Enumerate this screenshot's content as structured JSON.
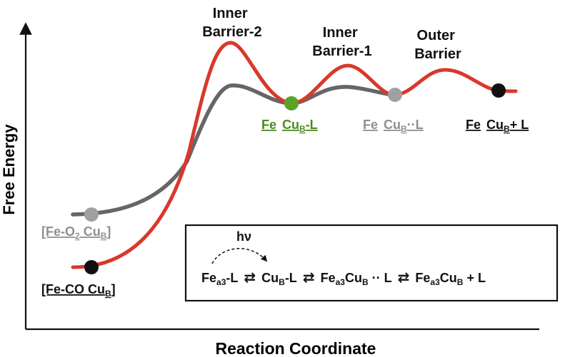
{
  "axes": {
    "y_label": "Free Energy",
    "x_label": "Reaction Coordinate"
  },
  "barriers": {
    "inner2_line1": "Inner",
    "inner2_line2": "Barrier-2",
    "inner1_line1": "Inner",
    "inner1_line2": "Barrier-1",
    "outer_line1": "Outer",
    "outer_line2": "Barrier"
  },
  "states": {
    "fe_o2": {
      "prefix": "[Fe-O",
      "sub": "2",
      "mid": " Cu",
      "sub_b": "B",
      "suffix": "]"
    },
    "fe_co": {
      "prefix": "[Fe-CO",
      "mid": " Cu",
      "sub_b": "B",
      "suffix": "]"
    },
    "fe_cub_l": {
      "fe": "Fe",
      "cu": "Cu",
      "sub_b": "B",
      "tail": "-L"
    },
    "fe_cub_dotl": {
      "fe": "Fe",
      "cu": "Cu",
      "sub_b": "B",
      "tail": "··L"
    },
    "fe_cub_plus_l": {
      "fe": "Fe",
      "cu": "Cu",
      "sub_b": "B",
      "tail": "+ L"
    }
  },
  "scheme": {
    "hv": "hν",
    "fe": "Fe",
    "a3": "a3",
    "cu": "Cu",
    "b": "B",
    "l_tail": "-L",
    "dots_l": " ·· L",
    "plus_l": " + L",
    "arrows": "⇄"
  },
  "colors": {
    "red_curve": "#d9382b",
    "gray_curve": "#666666",
    "green_point": "#5aa12a",
    "gray_point": "#a0a0a0",
    "black_point": "#111111",
    "green_text": "#4c8a1f",
    "gray_text": "#8f8f8f"
  }
}
